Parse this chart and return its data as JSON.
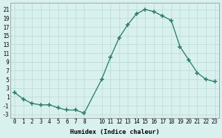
{
  "x": [
    0,
    1,
    2,
    3,
    4,
    5,
    6,
    7,
    8,
    10,
    11,
    12,
    13,
    14,
    15,
    16,
    17,
    18,
    19,
    20,
    21,
    22,
    23
  ],
  "y": [
    2.0,
    0.5,
    -0.5,
    -0.8,
    -0.8,
    -1.5,
    -2.0,
    -2.0,
    -2.7,
    5.0,
    10.0,
    14.5,
    17.5,
    20.0,
    21.0,
    20.5,
    19.5,
    18.5,
    12.5,
    9.5,
    6.5,
    5.0,
    4.5
  ],
  "line_color": "#2e7d6e",
  "marker": "+",
  "markersize": 5,
  "linewidth": 1.0,
  "background_color": "#d8f0ee",
  "grid_color": "#b8d8d4",
  "xlabel": "Humidex (Indice chaleur)",
  "xlabel_fontsize": 6.5,
  "xticks": [
    0,
    1,
    2,
    3,
    4,
    5,
    6,
    7,
    8,
    10,
    11,
    12,
    13,
    14,
    15,
    16,
    17,
    18,
    19,
    20,
    21,
    22,
    23
  ],
  "yticks": [
    -3,
    -1,
    1,
    3,
    5,
    7,
    9,
    11,
    13,
    15,
    17,
    19,
    21
  ],
  "xlim": [
    -0.5,
    23.5
  ],
  "ylim": [
    -3.8,
    22.5
  ],
  "tick_fontsize": 5.5
}
